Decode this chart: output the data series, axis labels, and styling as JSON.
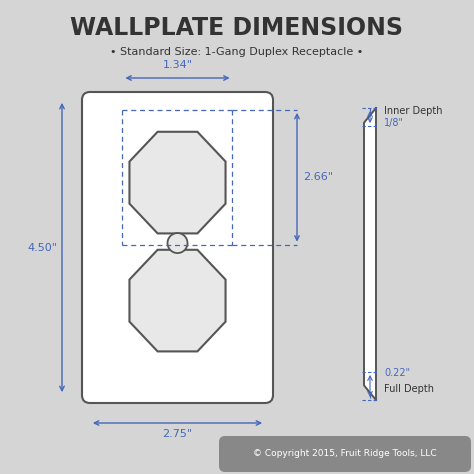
{
  "title": "WALLPLATE DIMENSIONS",
  "subtitle": "• Standard Size: 1-Gang Duplex Receptacle •",
  "bg_color": "#d5d5d5",
  "plate_color": "#ffffff",
  "plate_stroke": "#555555",
  "dim_color": "#4466bb",
  "text_color": "#333333",
  "dim_1_34_label": "1.34\"",
  "dim_2_75_label": "2.75\"",
  "dim_4_50_label": "4.50\"",
  "dim_2_66_label": "2.66\"",
  "dim_1_8_label": "1/8\"",
  "dim_0_22_label": "0.22\"",
  "inner_depth_label": "Inner Depth",
  "full_depth_label": "Full Depth",
  "copyright": "© Copyright 2015, Fruit Ridge Tools, LLC"
}
